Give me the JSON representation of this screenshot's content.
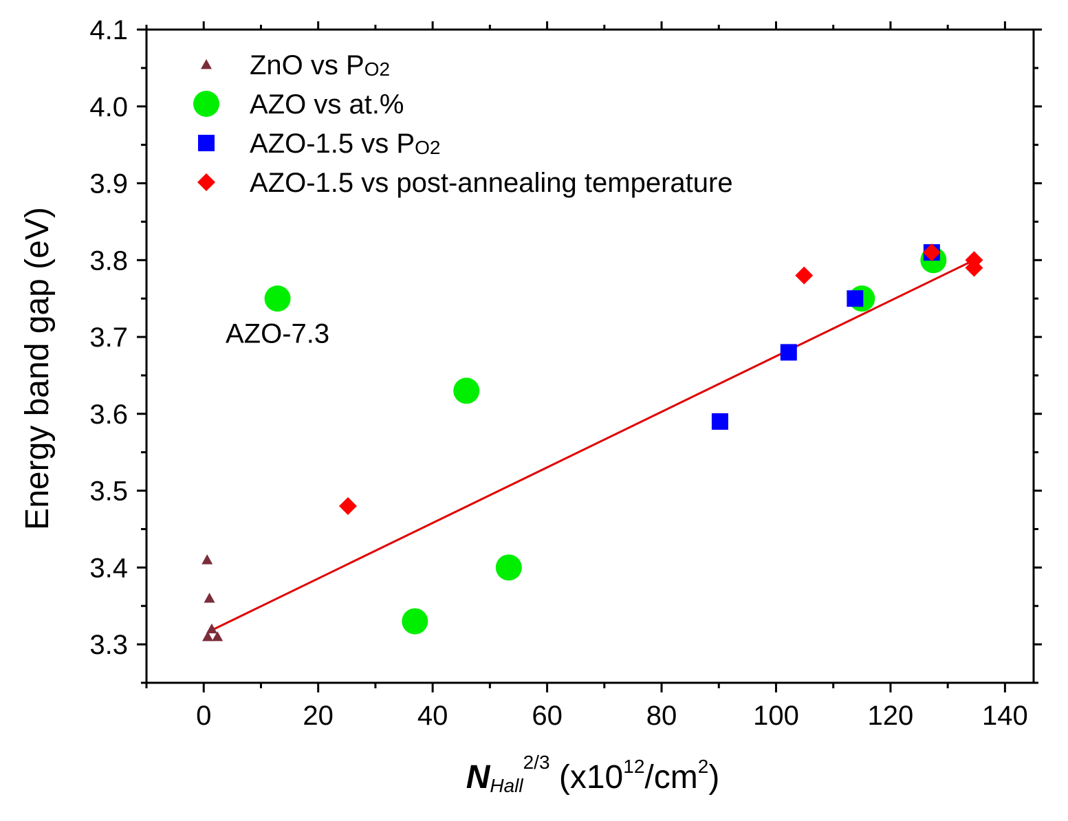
{
  "chart_data": {
    "type": "scatter",
    "xlabel": {
      "main": "N",
      "sub": "Hall",
      "sup": "2/3",
      "units_prefix": " (x10",
      "units_sup1": "12",
      "units_mid": "/cm",
      "units_sup2": "2",
      "units_suffix": ")"
    },
    "ylabel": "Energy band gap (eV)",
    "xlim": [
      -10,
      145
    ],
    "ylim": [
      3.25,
      4.1
    ],
    "x_ticks": [
      0,
      20,
      40,
      60,
      80,
      100,
      120,
      140
    ],
    "x_tick_labels": [
      "0",
      "20",
      "40",
      "60",
      "80",
      "100",
      "120",
      "140"
    ],
    "x_minor_step": 10,
    "y_ticks": [
      3.3,
      3.4,
      3.5,
      3.6,
      3.7,
      3.8,
      3.9,
      4.0,
      4.1
    ],
    "y_tick_labels": [
      "3.3",
      "3.4",
      "3.5",
      "3.6",
      "3.7",
      "3.8",
      "3.9",
      "4.0",
      "4.1"
    ],
    "y_minor_step": 0.05,
    "grid": false,
    "legend_position": "top-left",
    "series": [
      {
        "label_main": "ZnO vs P",
        "label_sub": "O2",
        "marker": "triangle",
        "color": "#7b2d3a",
        "points": [
          [
            0.6,
            3.41
          ],
          [
            1.0,
            3.36
          ],
          [
            1.4,
            3.32
          ],
          [
            0.7,
            3.31
          ],
          [
            2.4,
            3.31
          ]
        ]
      },
      {
        "label_main": "AZO vs at.%",
        "label_sub": "",
        "marker": "circle",
        "color": "#00ee00",
        "points": [
          [
            12.9,
            3.75
          ],
          [
            45.9,
            3.63
          ],
          [
            53.3,
            3.4
          ],
          [
            36.9,
            3.33
          ],
          [
            115.0,
            3.75
          ],
          [
            127.5,
            3.8
          ]
        ]
      },
      {
        "label_main": "AZO-1.5 vs P",
        "label_sub": "O2",
        "marker": "square",
        "color": "#0000ff",
        "points": [
          [
            90.2,
            3.59
          ],
          [
            102.2,
            3.68
          ],
          [
            113.8,
            3.75
          ],
          [
            127.2,
            3.81
          ]
        ]
      },
      {
        "label_main": "AZO-1.5 vs post-annealing temperature",
        "label_sub": "",
        "marker": "diamond",
        "color": "#ff0000",
        "points": [
          [
            25.2,
            3.48
          ],
          [
            104.9,
            3.78
          ],
          [
            127.2,
            3.81
          ],
          [
            134.6,
            3.8
          ],
          [
            134.6,
            3.79
          ]
        ]
      }
    ],
    "fit_line": {
      "color": "#e00000",
      "points": [
        [
          1.0,
          3.317
        ],
        [
          134.6,
          3.8
        ]
      ]
    },
    "annotations": [
      {
        "text": "AZO-7.3",
        "x": 12.9,
        "y": 3.705
      }
    ]
  }
}
